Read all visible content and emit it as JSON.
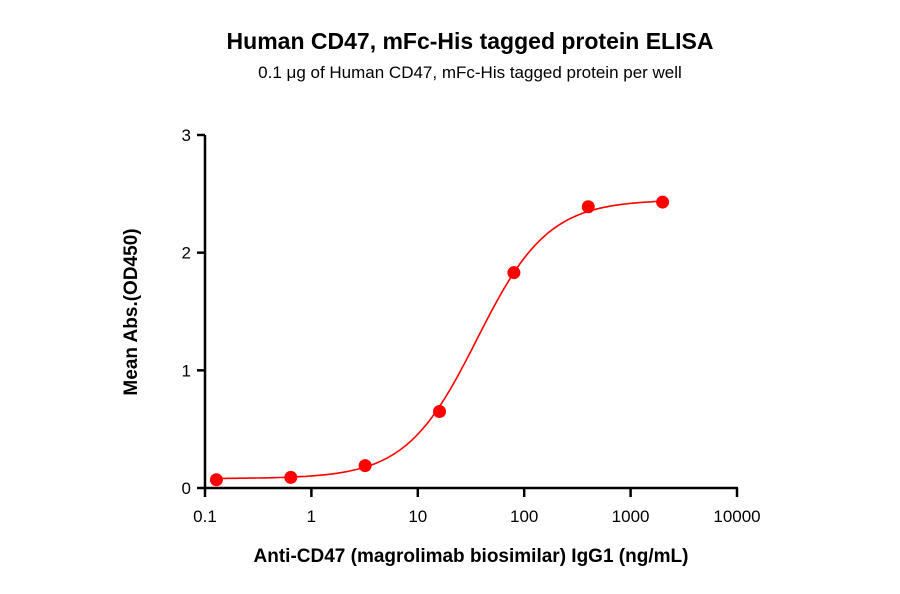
{
  "chart_data": {
    "type": "scatter",
    "title": "Human CD47, mFc-His tagged protein ELISA",
    "subtitle": "0.1 μg of Human CD47, mFc-His tagged protein per well",
    "xlabel": "Anti-CD47 (magrolimab biosimilar) IgG1 (ng/mL)",
    "ylabel": "Mean Abs.(OD450)",
    "xscale": "log",
    "xlim": [
      0.1,
      10000
    ],
    "ylim": [
      0,
      3
    ],
    "xticks": [
      "0.1",
      "1",
      "10",
      "100",
      "1000",
      "10000"
    ],
    "yticks": [
      "0",
      "1",
      "2",
      "3"
    ],
    "grid": false,
    "color": "#ff0000",
    "fit_curve": "sigmoidal (4PL)",
    "x": [
      0.128,
      0.64,
      3.2,
      16,
      80,
      400,
      2000
    ],
    "y": [
      0.07,
      0.09,
      0.19,
      0.65,
      1.83,
      2.39,
      2.43
    ]
  }
}
